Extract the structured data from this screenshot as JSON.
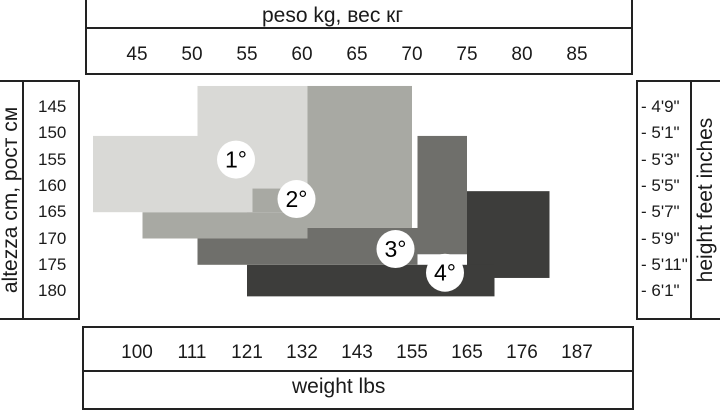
{
  "chart_data": {
    "type": "area",
    "title": "",
    "top_axis_label": "peso kg, вес кг",
    "bottom_axis_label": "weight lbs",
    "left_axis_label": "altezza cm, рост см",
    "right_axis_label": "height feet inches",
    "kg_ticks": [
      "45",
      "50",
      "55",
      "60",
      "65",
      "70",
      "75",
      "80",
      "85"
    ],
    "lbs_ticks": [
      "100",
      "111",
      "121",
      "132",
      "143",
      "155",
      "165",
      "176",
      "187"
    ],
    "cm_ticks": [
      "145",
      "150",
      "155",
      "160",
      "165",
      "170",
      "175",
      "180"
    ],
    "inch_ticks": [
      "4'9\"",
      "5'1\"",
      "5'3\"",
      "5'5\"",
      "5'7\"",
      "5'9\"",
      "5'11\"",
      "6'1\""
    ],
    "xlim_kg": [
      45,
      85
    ],
    "ylim_cm": [
      145,
      180
    ],
    "sizes": [
      {
        "label": "4°",
        "color": "#3d3d3b",
        "regions_kg_cm": [
          [
            75,
            82.5,
            161,
            177.5
          ],
          [
            55,
            77.5,
            175,
            181
          ]
        ]
      },
      {
        "label": "3°",
        "color": "#6f6f6b",
        "regions_kg_cm": [
          [
            70.5,
            75,
            150.5,
            173
          ],
          [
            50.5,
            70.5,
            168,
            175
          ]
        ]
      },
      {
        "label": "2°",
        "color": "#a8a9a3",
        "regions_kg_cm": [
          [
            60.5,
            70,
            141,
            168
          ],
          [
            45.5,
            60.5,
            165,
            170
          ],
          [
            55,
            60.5,
            160.5,
            165
          ]
        ]
      },
      {
        "label": "1°",
        "color": "#d9d9d6",
        "regions_kg_cm": [
          [
            50.5,
            60.5,
            141,
            160.5
          ],
          [
            41,
            55.5,
            150.5,
            165
          ]
        ]
      }
    ],
    "label_positions_kg_cm": [
      [
        54,
        155
      ],
      [
        59.5,
        162.5
      ],
      [
        68.5,
        172
      ],
      [
        73,
        176.5
      ]
    ]
  }
}
